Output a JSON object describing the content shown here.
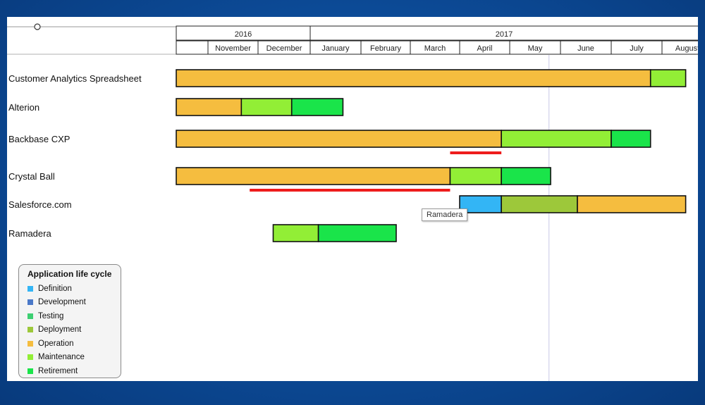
{
  "chart_data": {
    "type": "gantt",
    "years": [
      {
        "label": "2016",
        "start": "2016-11",
        "end": "2016-12"
      },
      {
        "label": "2017",
        "start": "2017-01",
        "end": "2017-08"
      }
    ],
    "months": [
      {
        "key": "2016-10",
        "label": ""
      },
      {
        "key": "2016-11",
        "label": "November"
      },
      {
        "key": "2016-12",
        "label": "December"
      },
      {
        "key": "2017-01",
        "label": "January"
      },
      {
        "key": "2017-02",
        "label": "February"
      },
      {
        "key": "2017-03",
        "label": "March"
      },
      {
        "key": "2017-04",
        "label": "April"
      },
      {
        "key": "2017-05",
        "label": "May"
      },
      {
        "key": "2017-06",
        "label": "June"
      },
      {
        "key": "2017-07",
        "label": "July"
      },
      {
        "key": "2017-08",
        "label": "August"
      }
    ],
    "today": "2017-05-25",
    "rows": [
      {
        "name": "Customer Analytics Spreadsheet",
        "segments": [
          {
            "phase": "Operation",
            "start": "2016-10-01",
            "end": "2017-07-25"
          },
          {
            "phase": "Maintenance",
            "start": "2017-07-25",
            "end": "2017-09-15"
          }
        ]
      },
      {
        "name": "Alterion",
        "segments": [
          {
            "phase": "Operation",
            "start": "2016-10-01",
            "end": "2016-11-21"
          },
          {
            "phase": "Maintenance",
            "start": "2016-11-21",
            "end": "2016-12-21"
          },
          {
            "phase": "Retirement",
            "start": "2016-12-21",
            "end": "2017-01-21"
          }
        ]
      },
      {
        "name": "Backbase CXP",
        "segments": [
          {
            "phase": "Operation",
            "start": "2016-10-01",
            "end": "2017-04-26"
          },
          {
            "phase": "Maintenance",
            "start": "2017-04-26",
            "end": "2017-07-01"
          },
          {
            "phase": "Retirement",
            "start": "2017-07-01",
            "end": "2017-07-25"
          }
        ],
        "overdue": {
          "start": "2017-03-26",
          "end": "2017-04-26"
        }
      },
      {
        "name": "Crystal Ball",
        "segments": [
          {
            "phase": "Operation",
            "start": "2016-10-01",
            "end": "2017-03-26"
          },
          {
            "phase": "Maintenance",
            "start": "2017-03-26",
            "end": "2017-04-26"
          },
          {
            "phase": "Retirement",
            "start": "2017-04-26",
            "end": "2017-05-26"
          }
        ],
        "overdue": {
          "start": "2016-11-26",
          "end": "2017-03-26"
        }
      },
      {
        "name": "Salesforce.com",
        "segments": [
          {
            "phase": "Definition",
            "start": "2017-04-01",
            "end": "2017-04-26"
          },
          {
            "phase": "Deployment",
            "start": "2017-04-26",
            "end": "2017-06-11"
          },
          {
            "phase": "Operation",
            "start": "2017-06-11",
            "end": "2017-09-15"
          }
        ]
      },
      {
        "name": "Ramadera",
        "segments": [
          {
            "phase": "Operation",
            "start": "2016-09-30",
            "end": "2016-12-10"
          },
          {
            "phase": "Maintenance",
            "start": "2016-12-10",
            "end": "2017-01-06"
          },
          {
            "phase": "Retirement",
            "start": "2017-01-06",
            "end": "2017-02-21"
          }
        ]
      }
    ]
  },
  "legend": {
    "title": "Application life cycle",
    "items": [
      {
        "label": "Definition",
        "color": "#33b5f5"
      },
      {
        "label": "Development",
        "color": "#4a78c8"
      },
      {
        "label": "Testing",
        "color": "#3dcf72"
      },
      {
        "label": "Deployment",
        "color": "#9dc83a"
      },
      {
        "label": "Operation",
        "color": "#f5bd3f"
      },
      {
        "label": "Maintenance",
        "color": "#92ee36"
      },
      {
        "label": "Retirement",
        "color": "#1ae44a"
      }
    ]
  },
  "tooltip": {
    "text": "Ramadera"
  },
  "colors": {
    "overdue": "#ee1c1c",
    "today_line": "#c8c8e6"
  }
}
